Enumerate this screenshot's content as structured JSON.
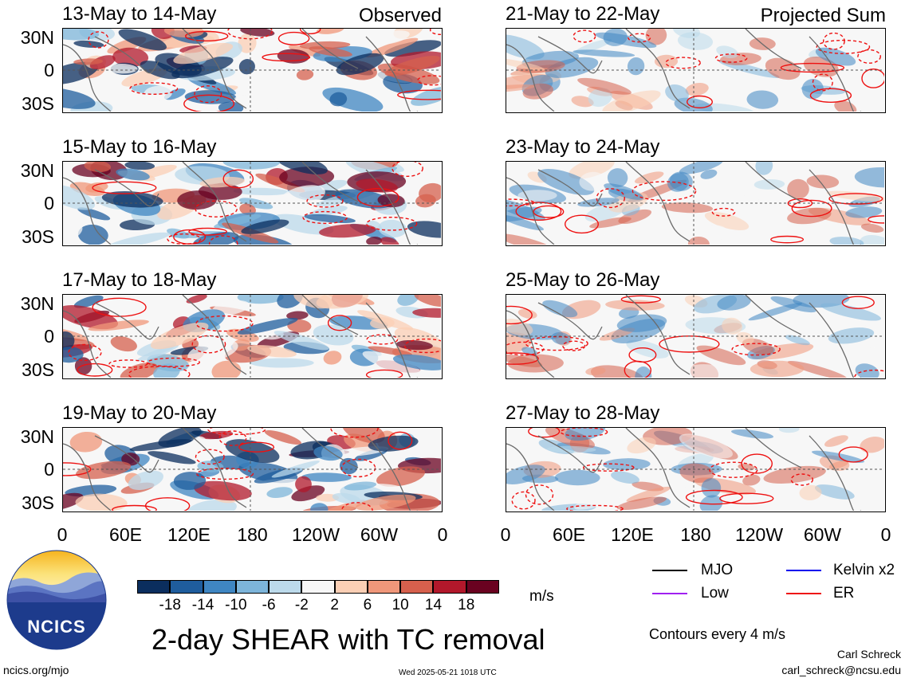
{
  "chart_data": {
    "type": "heatmap",
    "title": "2-day SHEAR with TC removal",
    "left_column_label": "Observed",
    "right_column_label": "Projected Sum",
    "panels": [
      {
        "period": "13-May to 14-May",
        "column": "Observed"
      },
      {
        "period": "15-May to 16-May",
        "column": "Observed"
      },
      {
        "period": "17-May to 18-May",
        "column": "Observed"
      },
      {
        "period": "19-May to 20-May",
        "column": "Observed"
      },
      {
        "period": "21-May to 22-May",
        "column": "Projected Sum"
      },
      {
        "period": "23-May to 24-May",
        "column": "Projected Sum"
      },
      {
        "period": "25-May to 26-May",
        "column": "Projected Sum"
      },
      {
        "period": "27-May to 28-May",
        "column": "Projected Sum"
      }
    ],
    "latitude_ticks": [
      "30N",
      "0",
      "30S"
    ],
    "longitude_ticks": [
      "0",
      "60E",
      "120E",
      "180",
      "120W",
      "60W",
      "0"
    ],
    "colorbar": {
      "units": "m/s",
      "tick_labels": [
        "-18",
        "-14",
        "-10",
        "-6",
        "-2",
        "2",
        "6",
        "10",
        "14",
        "18"
      ],
      "colors": [
        "#0b2e5e",
        "#1f5d9d",
        "#3f86c2",
        "#7db5da",
        "#bcdaeb",
        "#f7f7f7",
        "#fbcfb5",
        "#f0977a",
        "#d6604d",
        "#b2182b",
        "#6a0220"
      ]
    },
    "contour_legend": [
      {
        "label": "MJO",
        "color": "#000000"
      },
      {
        "label": "Kelvin x2",
        "color": "#0000ee"
      },
      {
        "label": "Low",
        "color": "#a020f0"
      },
      {
        "label": "ER",
        "color": "#ee1111"
      }
    ],
    "contour_note": "Contours every 4 m/s"
  },
  "branding": {
    "logo_text": "NCICS",
    "site": "ncics.org/mjo",
    "timestamp": "Wed 2025-05-21 1018 UTC",
    "author": "Carl Schreck",
    "email": "carl_schreck@ncsu.edu"
  }
}
